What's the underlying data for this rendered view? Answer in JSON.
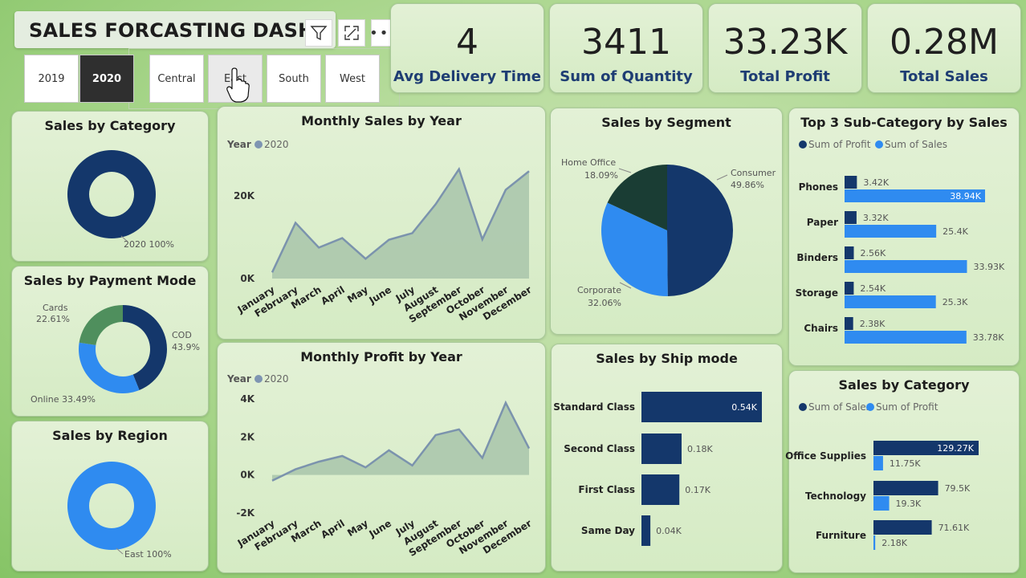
{
  "dashboard": {
    "title": "SALES FORCASTING DASHB",
    "year_slicer": [
      "2019",
      "2020"
    ],
    "region_slicer": [
      "Central",
      "East",
      "South",
      "West"
    ]
  },
  "kpis": [
    {
      "value": "4",
      "label": "Avg Delivery Time"
    },
    {
      "value": "3411",
      "label": "Sum of Quantity"
    },
    {
      "value": "33.23K",
      "label": "Total Profit"
    },
    {
      "value": "0.28M",
      "label": "Total Sales"
    }
  ],
  "colors": {
    "navy": "#14376b",
    "blue": "#2f8bf0",
    "dark_green": "#1a3d34",
    "green": "#4f8f5d",
    "area_fill": "#a8c4aa",
    "area_line": "#7b93ad",
    "legend_dot": "#7e95b2"
  },
  "chart_data": [
    {
      "id": "category_donut",
      "type": "pie",
      "title": "Sales by Category",
      "labels": [
        "2020"
      ],
      "values": [
        100
      ],
      "data_labels": [
        "2020 100%"
      ]
    },
    {
      "id": "payment_donut",
      "type": "pie",
      "title": "Sales by Payment Mode",
      "labels": [
        "COD",
        "Online",
        "Cards"
      ],
      "values": [
        43.9,
        33.49,
        22.61
      ],
      "label_names": [
        "COD",
        "Online 33.49%",
        "Cards"
      ],
      "label_pcts": [
        "43.9%",
        "",
        "22.61%"
      ]
    },
    {
      "id": "region_donut",
      "type": "pie",
      "title": "Sales by Region",
      "labels": [
        "East"
      ],
      "values": [
        100
      ],
      "data_labels": [
        "East 100%"
      ]
    },
    {
      "id": "monthly_sales",
      "type": "area",
      "title": "Monthly Sales by Year",
      "legend_title": "Year",
      "legend": [
        "2020"
      ],
      "categories": [
        "January",
        "February",
        "March",
        "April",
        "May",
        "June",
        "July",
        "August",
        "September",
        "October",
        "November",
        "December"
      ],
      "values": [
        1500,
        13500,
        7500,
        9800,
        4800,
        9400,
        11000,
        18000,
        26500,
        9500,
        21500,
        26000
      ],
      "yticks": [
        "0K",
        "20K"
      ],
      "ytick_values": [
        0,
        20000
      ],
      "ylim": [
        0,
        28000
      ]
    },
    {
      "id": "monthly_profit",
      "type": "area",
      "title": "Monthly Profit by Year",
      "legend_title": "Year",
      "legend": [
        "2020"
      ],
      "categories": [
        "January",
        "February",
        "March",
        "April",
        "May",
        "June",
        "July",
        "August",
        "September",
        "October",
        "November",
        "December"
      ],
      "values": [
        -300,
        300,
        700,
        1000,
        400,
        1300,
        500,
        2100,
        2400,
        900,
        3800,
        1400
      ],
      "yticks": [
        "4K",
        "2K",
        "0K",
        "-2K"
      ],
      "ytick_values": [
        4000,
        2000,
        0,
        -2000
      ],
      "ylim": [
        -2000,
        4000
      ]
    },
    {
      "id": "segment_pie",
      "type": "pie",
      "title": "Sales by Segment",
      "labels": [
        "Consumer",
        "Corporate",
        "Home Office"
      ],
      "values": [
        49.86,
        32.06,
        18.09
      ],
      "label_names": [
        "Consumer",
        "Corporate",
        "Home Office"
      ],
      "label_pcts": [
        "49.86%",
        "32.06%",
        "18.09%"
      ]
    },
    {
      "id": "ship_mode",
      "type": "bar",
      "title": "Sales by Ship mode",
      "categories": [
        "Standard Class",
        "Second Class",
        "First Class",
        "Same Day"
      ],
      "values": [
        0.54,
        0.18,
        0.17,
        0.04
      ],
      "data_labels": [
        "0.54K",
        "0.18K",
        "0.17K",
        "0.04K"
      ]
    },
    {
      "id": "top3_subcategory",
      "type": "bar",
      "title": "Top 3 Sub-Category by Sales",
      "categories": [
        "Phones",
        "Paper",
        "Binders",
        "Storage",
        "Chairs"
      ],
      "series": [
        {
          "name": "Sum of Profit",
          "values": [
            3.42,
            3.32,
            2.56,
            2.54,
            2.38
          ],
          "data_labels": [
            "3.42K",
            "3.32K",
            "2.56K",
            "2.54K",
            "2.38K"
          ]
        },
        {
          "name": "Sum of Sales",
          "values": [
            38.94,
            25.4,
            33.93,
            25.3,
            33.78
          ],
          "data_labels": [
            "38.94K",
            "25.4K",
            "33.93K",
            "25.3K",
            "33.78K"
          ]
        }
      ]
    },
    {
      "id": "category_bars",
      "type": "bar",
      "title": "Sales by Category",
      "categories": [
        "Office Supplies",
        "Technology",
        "Furniture"
      ],
      "series": [
        {
          "name": "Sum of Sales",
          "values": [
            129.27,
            79.5,
            71.61
          ],
          "data_labels": [
            "129.27K",
            "79.5K",
            "71.61K"
          ]
        },
        {
          "name": "Sum of Profit",
          "values": [
            11.75,
            19.3,
            2.18
          ],
          "data_labels": [
            "11.75K",
            "19.3K",
            "2.18K"
          ]
        }
      ]
    }
  ]
}
